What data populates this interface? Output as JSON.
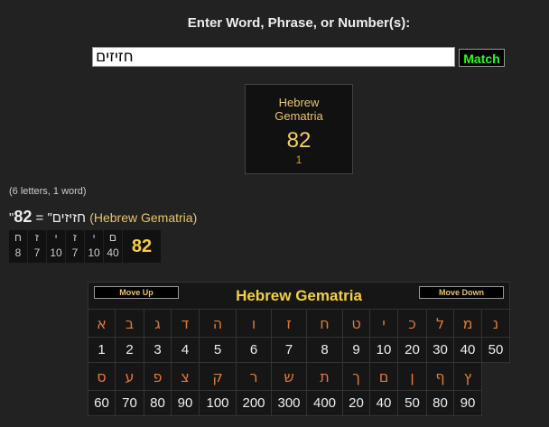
{
  "prompt": "Enter Word, Phrase, or Number(s):",
  "input_value": "חזיזים",
  "match_label": "Match",
  "card": {
    "cipher_name": "Hebrew Gematria",
    "value": "82",
    "count": "1"
  },
  "summary": {
    "counts": "(6 letters, 1 word)",
    "phrase": "\"חזיזים\"",
    "equals": "=",
    "value": "82",
    "cipher": "(Hebrew Gematria)"
  },
  "breakdown": {
    "letters": [
      "ח",
      "ז",
      "י",
      "ז",
      "י",
      "ם"
    ],
    "values": [
      "8",
      "7",
      "10",
      "7",
      "10",
      "40"
    ],
    "total": "82"
  },
  "table": {
    "title": "Hebrew Gematria",
    "move_up": "Move Up",
    "move_down": "Move Down",
    "row1_letters": [
      "א",
      "ב",
      "ג",
      "ד",
      "ה",
      "ו",
      "ז",
      "ח",
      "ט",
      "י",
      "כ",
      "ל",
      "מ",
      "נ"
    ],
    "row1_values": [
      "1",
      "2",
      "3",
      "4",
      "5",
      "6",
      "7",
      "8",
      "9",
      "10",
      "20",
      "30",
      "40",
      "50"
    ],
    "row2_letters": [
      "ס",
      "ע",
      "פ",
      "צ",
      "ק",
      "ר",
      "ש",
      "ת",
      "ך",
      "ם",
      "ן",
      "ף",
      "ץ"
    ],
    "row2_values": [
      "60",
      "70",
      "80",
      "90",
      "100",
      "200",
      "300",
      "400",
      "20",
      "40",
      "50",
      "80",
      "90"
    ]
  },
  "colors": {
    "background": "#222222",
    "accent": "#f2d040",
    "letter": "#e07a3a",
    "match": "#22ff22"
  }
}
